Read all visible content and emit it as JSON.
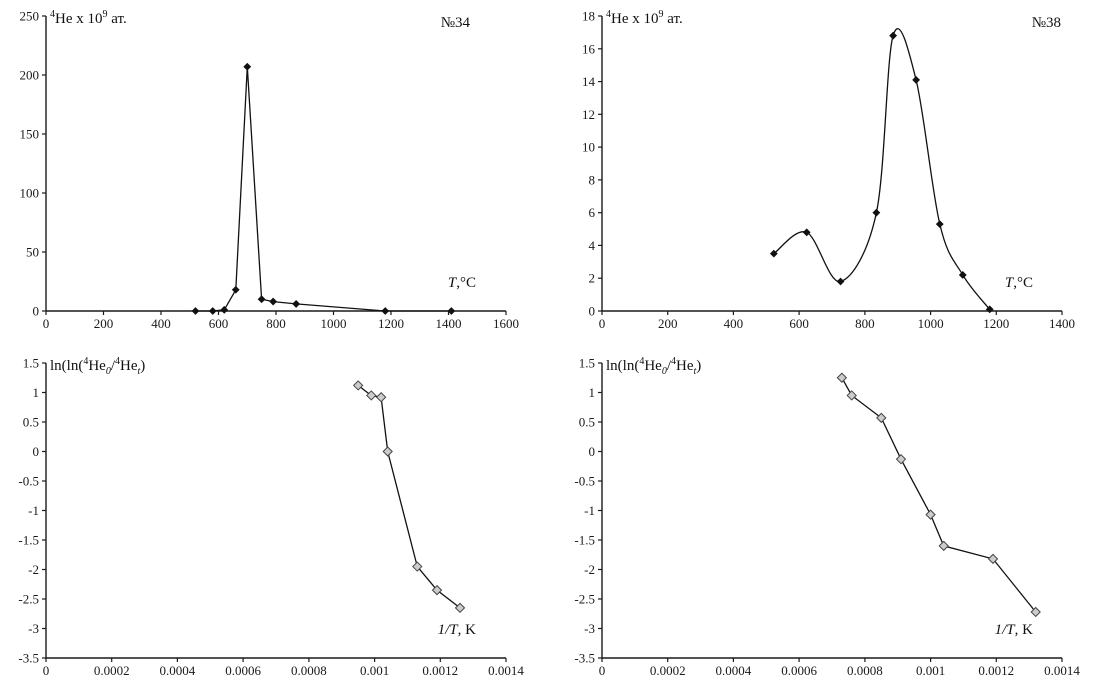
{
  "page": {
    "background": "#ffffff",
    "axis_color": "#1a1a1a",
    "line_color": "#111111",
    "open_marker_fill": "#cccccc"
  },
  "labels": {
    "he": {
      "s1": "4",
      "t1": "He x 10",
      "s2": "9",
      "t2": " ат."
    },
    "ln": {
      "t1": "ln(ln(",
      "s1": "4",
      "t2": "He",
      "b1": "0",
      "t3": "/",
      "s2": "4",
      "t4": "He",
      "b2": "t",
      "t5": ")"
    },
    "temp": {
      "i": "T",
      "r": ",°C"
    },
    "invt": {
      "i": "1/T",
      "r": ", K"
    }
  },
  "chart_data": [
    {
      "type": "line",
      "panel": "top-left",
      "sample_label": "№34",
      "ylabel": "⁴He x 10⁹ ат.",
      "xlabel": "T,°C",
      "xlim": [
        0,
        1600
      ],
      "xticks": [
        0,
        200,
        400,
        600,
        800,
        1000,
        1200,
        1400,
        1600
      ],
      "ylim": [
        0,
        250
      ],
      "yticks": [
        0,
        50,
        100,
        150,
        200,
        250
      ],
      "x": [
        520,
        580,
        620,
        660,
        700,
        750,
        790,
        870,
        1180,
        1410
      ],
      "y": [
        0,
        0,
        1,
        18,
        207,
        10,
        8,
        6,
        0,
        0
      ],
      "smooth": false,
      "marker": "filled-diamond",
      "grid": false,
      "legend": "none"
    },
    {
      "type": "line",
      "panel": "top-right",
      "sample_label": "№38",
      "ylabel": "⁴He x 10⁹ ат.",
      "xlabel": "T,°C",
      "xlim": [
        0,
        1400
      ],
      "xticks": [
        0,
        200,
        400,
        600,
        800,
        1000,
        1200,
        1400
      ],
      "ylim": [
        0,
        18
      ],
      "yticks": [
        0,
        2,
        4,
        6,
        8,
        10,
        12,
        14,
        16,
        18
      ],
      "x": [
        523,
        623,
        726,
        835,
        886,
        956,
        1028,
        1098,
        1180
      ],
      "y": [
        3.5,
        4.8,
        1.8,
        6.0,
        16.8,
        14.1,
        5.3,
        2.2,
        0.1
      ],
      "smooth": true,
      "marker": "filled-diamond",
      "grid": false,
      "legend": "none"
    },
    {
      "type": "line",
      "panel": "bottom-left",
      "sample_label": "",
      "ylabel": "ln(ln(⁴He₀/⁴Heₜ)",
      "xlabel": "1/T, K",
      "xlim": [
        0,
        0.0014
      ],
      "xticks": [
        0,
        0.0002,
        0.0004,
        0.0006,
        0.0008,
        0.001,
        0.0012,
        0.0014
      ],
      "ylim": [
        -3.5,
        1.5
      ],
      "yticks": [
        -3.5,
        -3,
        -2.5,
        -2,
        -1.5,
        -1,
        -0.5,
        0,
        0.5,
        1,
        1.5
      ],
      "x": [
        0.00095,
        0.00099,
        0.00102,
        0.00104,
        0.00113,
        0.00119,
        0.00126
      ],
      "y": [
        1.12,
        0.95,
        0.92,
        0.0,
        -1.95,
        -2.35,
        -2.65
      ],
      "smooth": false,
      "marker": "open-diamond",
      "grid": false,
      "legend": "none"
    },
    {
      "type": "line",
      "panel": "bottom-right",
      "sample_label": "",
      "ylabel": "ln(ln(⁴He₀/⁴Heₜ)",
      "xlabel": "1/T, K",
      "xlim": [
        0,
        0.0014
      ],
      "xticks": [
        0,
        0.0002,
        0.0004,
        0.0006,
        0.0008,
        0.001,
        0.0012,
        0.0014
      ],
      "ylim": [
        -3.5,
        1.5
      ],
      "yticks": [
        -3.5,
        -3,
        -2.5,
        -2,
        -1.5,
        -1,
        -0.5,
        0,
        0.5,
        1,
        1.5
      ],
      "x": [
        0.00073,
        0.00076,
        0.00085,
        0.00091,
        0.001,
        0.00104,
        0.00119,
        0.00132
      ],
      "y": [
        1.25,
        0.95,
        0.57,
        -0.13,
        -1.07,
        -1.6,
        -1.82,
        -2.72
      ],
      "smooth": false,
      "marker": "open-diamond",
      "grid": false,
      "legend": "none"
    }
  ]
}
